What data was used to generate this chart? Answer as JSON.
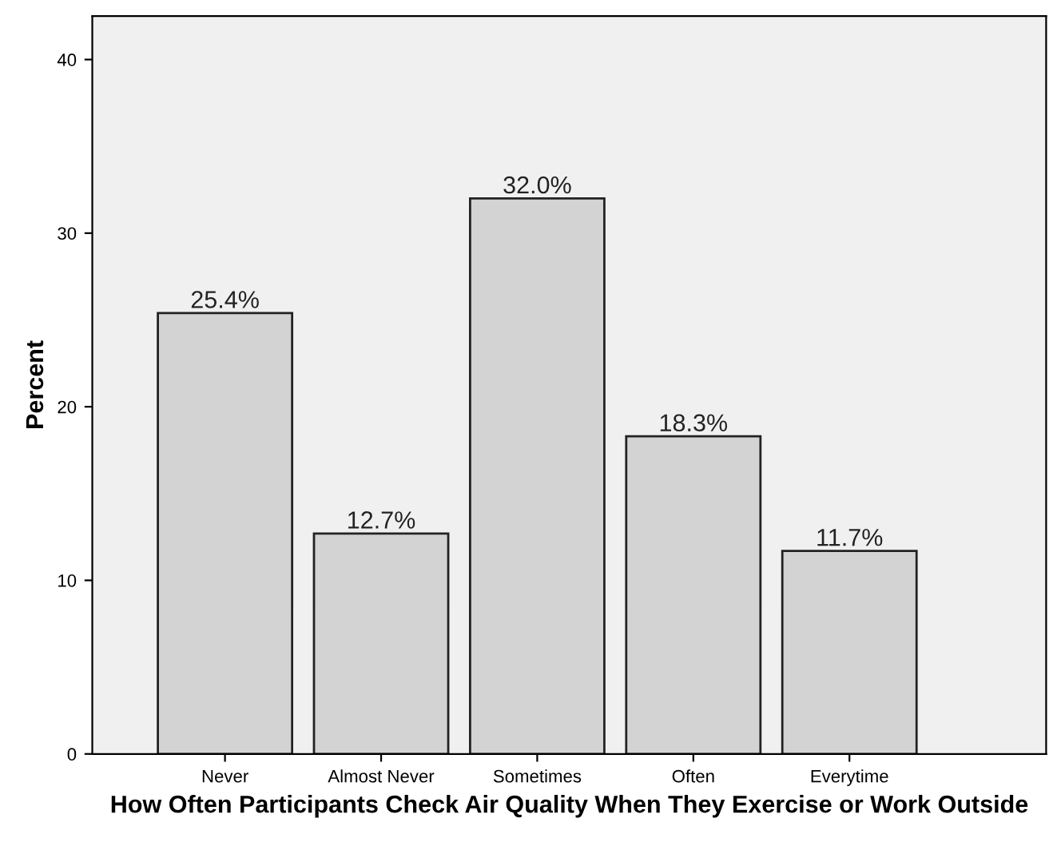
{
  "chart_data": {
    "type": "bar",
    "categories": [
      "Never",
      "Almost Never",
      "Sometimes",
      "Often",
      "Everytime"
    ],
    "values": [
      25.4,
      12.7,
      32.0,
      18.3,
      11.7
    ],
    "value_labels": [
      "25.4%",
      "12.7%",
      "32.0%",
      "18.3%",
      "11.7%"
    ],
    "color": "#d3d3d3",
    "xlabel": "How Often Participants Check Air Quality When They Exercise or Work Outside",
    "ylabel": "Percent",
    "ylim": [
      0,
      42.5
    ],
    "yticks": [
      0,
      10,
      20,
      30,
      40
    ],
    "grid": false,
    "legend": false
  }
}
